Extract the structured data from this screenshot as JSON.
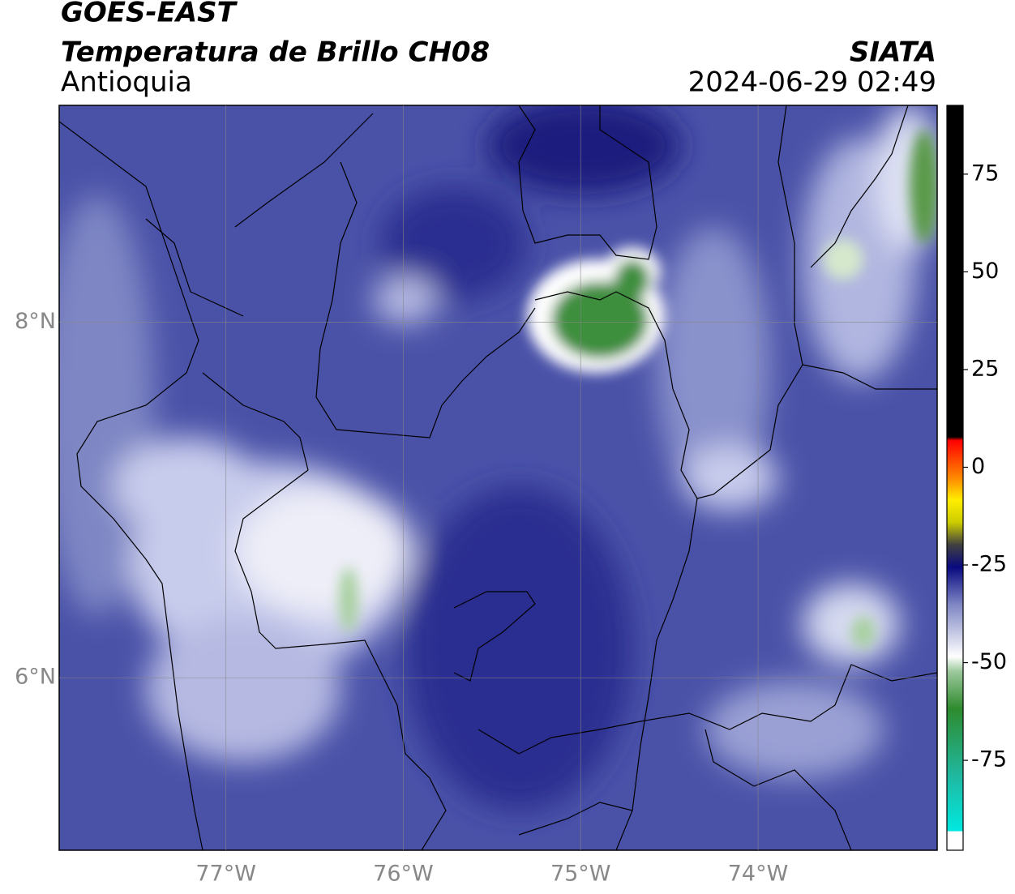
{
  "header": {
    "title": "GOES-EAST",
    "subtitle": "Temperatura de Brillo CH08",
    "region": "Antioquia",
    "source": "SIATA",
    "datetime": "2024-06-29 02:49"
  },
  "map": {
    "xlim": [
      -77.94,
      -72.99
    ],
    "ylim": [
      5.03,
      9.22
    ],
    "xticks": [
      {
        "value": -77,
        "label": "77°W"
      },
      {
        "value": -76,
        "label": "76°W"
      },
      {
        "value": -75,
        "label": "75°W"
      },
      {
        "value": -74,
        "label": "74°W"
      }
    ],
    "yticks": [
      {
        "value": 6,
        "label": "6°N"
      },
      {
        "value": 8,
        "label": "8°N"
      }
    ]
  },
  "colorbar": {
    "lim": [
      -98,
      92.6
    ],
    "ticks": [
      -75,
      -50,
      -25,
      0,
      25,
      50,
      75
    ]
  }
}
